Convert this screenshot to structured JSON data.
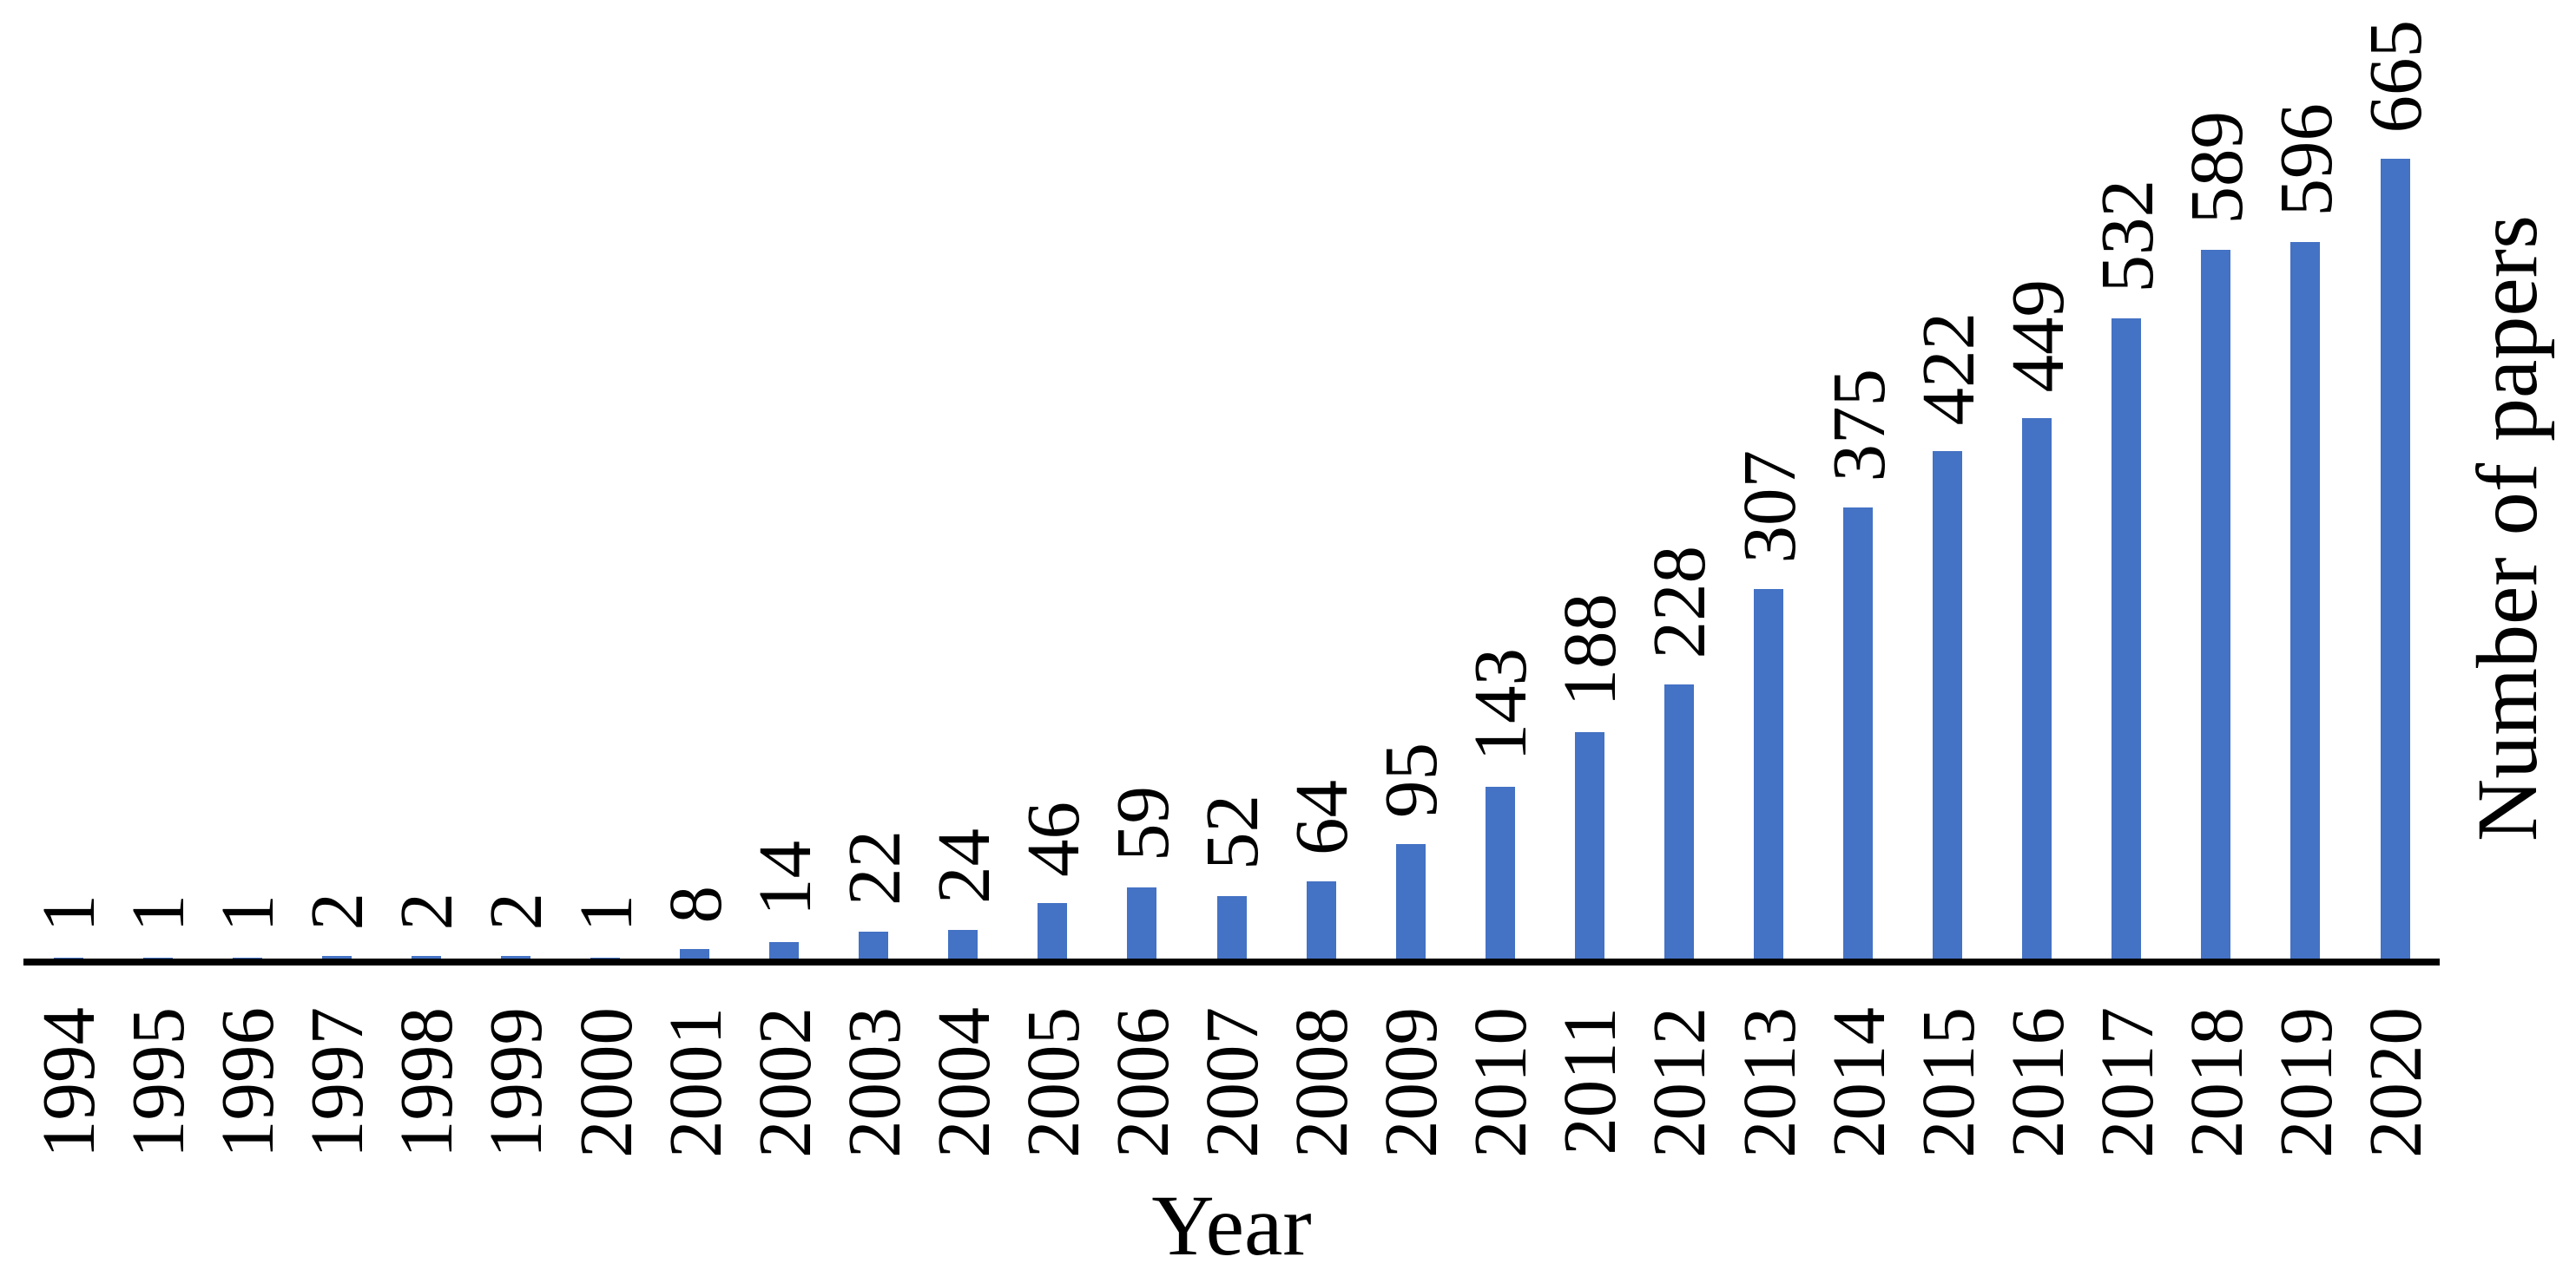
{
  "chart_data": {
    "type": "bar",
    "title": "",
    "xlabel": "Year",
    "ylabel": "Number of papers",
    "categories": [
      "1994",
      "1995",
      "1996",
      "1997",
      "1998",
      "1999",
      "2000",
      "2001",
      "2002",
      "2003",
      "2004",
      "2005",
      "2006",
      "2007",
      "2008",
      "2009",
      "2010",
      "2011",
      "2012",
      "2013",
      "2014",
      "2015",
      "2016",
      "2017",
      "2018",
      "2019",
      "2020"
    ],
    "values": [
      1,
      1,
      1,
      2,
      2,
      2,
      1,
      8,
      14,
      22,
      24,
      46,
      59,
      52,
      64,
      95,
      143,
      188,
      228,
      307,
      375,
      422,
      449,
      532,
      589,
      596,
      665
    ],
    "data_labels": [
      1,
      1,
      1,
      2,
      2,
      2,
      1,
      8,
      14,
      22,
      24,
      46,
      59,
      52,
      64,
      95,
      143,
      188,
      228,
      307,
      375,
      422,
      449,
      532,
      589,
      596,
      665
    ],
    "bar_color": "#4472C4",
    "axis_color": "#000000",
    "text_color": "#000000",
    "background_color": "#FFFFFF",
    "ylim": [
      0,
      665
    ],
    "grid": false,
    "legend": false,
    "label_rotation_degrees": 90,
    "tick_rotation_degrees": 90,
    "data_label_position": "outside-end"
  }
}
